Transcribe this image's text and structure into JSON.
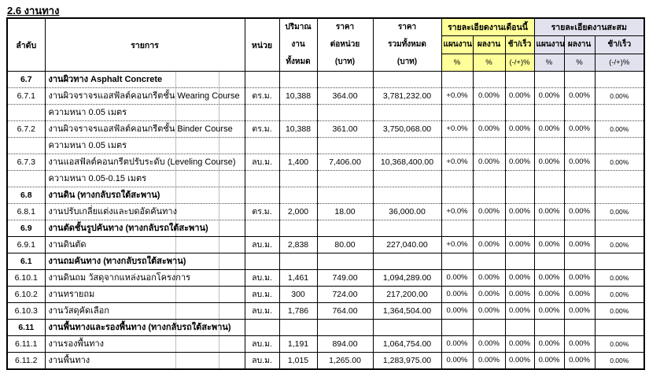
{
  "title": "2.6 งานทาง",
  "colors": {
    "month_header_bg": "#FFFF99",
    "cumulative_header_bg": "#E2E2EE",
    "grid": "#000000"
  },
  "table": {
    "headers": {
      "col_no": "ลำดับ",
      "col_desc": "รายการ",
      "col_unit": "หน่วย",
      "col_qty": [
        "ปริมาณ",
        "งาน",
        "ทั้งหมด"
      ],
      "col_unit_price": [
        "ราคา",
        "ต่อหน่วย",
        "(บาท)"
      ],
      "col_total": [
        "ราคา",
        "รวมทั้งหมด",
        "(บาท)"
      ],
      "group_month": "รายละเอียดงานเดือนนี้",
      "group_cumulative": "รายละเอียดงานสะสม",
      "sub_plan": "แผนงาน",
      "sub_actual": "ผลงาน",
      "sub_diff": "ช้า/เร็ว",
      "pct_label": "%",
      "diff_pct_label": "(-/+)%"
    },
    "rows": [
      {
        "no": "6.7",
        "desc": "งานผิวทาง Asphalt Concrete",
        "unit": "",
        "qty": "",
        "price": "",
        "total": "",
        "m_plan": "",
        "m_actual": "",
        "m_diff": "",
        "c_plan": "",
        "c_actual": "",
        "c_diff": "",
        "section": true,
        "border": "dotted"
      },
      {
        "no": "6.7.1",
        "desc": "งานผิวจราจรแอสฟัลต์คอนกรีตชั้น Wearing Course",
        "unit": "ตร.ม.",
        "qty": "10,388",
        "price": "364.00",
        "total": "3,781,232.00",
        "m_plan": "+0.0%",
        "m_actual": "0.00%",
        "m_diff": "0.00%",
        "c_plan": "0.00%",
        "c_actual": "0.00%",
        "c_diff": "0.00%",
        "section": false,
        "border": "dotted"
      },
      {
        "no": "",
        "desc": "ความหนา 0.05 เมตร",
        "unit": "",
        "qty": "",
        "price": "",
        "total": "",
        "m_plan": "",
        "m_actual": "",
        "m_diff": "",
        "c_plan": "",
        "c_actual": "",
        "c_diff": "",
        "section": false,
        "border": "dotted"
      },
      {
        "no": "6.7.2",
        "desc": "งานผิวจราจรแอสฟัลต์คอนกรีตชั้น  Binder Course",
        "unit": "ตร.ม.",
        "qty": "10,388",
        "price": "361.00",
        "total": "3,750,068.00",
        "m_plan": "+0.0%",
        "m_actual": "0.00%",
        "m_diff": "0.00%",
        "c_plan": "0.00%",
        "c_actual": "0.00%",
        "c_diff": "0.00%",
        "section": false,
        "border": "dotted"
      },
      {
        "no": "",
        "desc": "ความหนา 0.05 เมตร",
        "unit": "",
        "qty": "",
        "price": "",
        "total": "",
        "m_plan": "",
        "m_actual": "",
        "m_diff": "",
        "c_plan": "",
        "c_actual": "",
        "c_diff": "",
        "section": false,
        "border": "dotted"
      },
      {
        "no": "6.7.3",
        "desc": "งานแอสฟัลต์คอนกรีตปรับระดับ (Leveling Course)",
        "unit": "ลบ.ม.",
        "qty": "1,400",
        "price": "7,406.00",
        "total": "10,368,400.00",
        "m_plan": "+0.0%",
        "m_actual": "0.00%",
        "m_diff": "0.00%",
        "c_plan": "0.00%",
        "c_actual": "0.00%",
        "c_diff": "0.00%",
        "section": false,
        "border": "dotted"
      },
      {
        "no": "",
        "desc": "ความหนา 0.05-0.15 เมตร",
        "unit": "",
        "qty": "",
        "price": "",
        "total": "",
        "m_plan": "",
        "m_actual": "",
        "m_diff": "",
        "c_plan": "",
        "c_actual": "",
        "c_diff": "",
        "section": false,
        "border": "dotted"
      },
      {
        "no": "6.8",
        "desc": "งานดิน (ทางกลับรถใต้สะพาน)",
        "unit": "",
        "qty": "",
        "price": "",
        "total": "",
        "m_plan": "",
        "m_actual": "",
        "m_diff": "",
        "c_plan": "",
        "c_actual": "",
        "c_diff": "",
        "section": true,
        "border": "dotted"
      },
      {
        "no": "6.8.1",
        "desc": "งานปรับเกลี่ยแต่งและบดอัดคันทาง",
        "unit": "ตร.ม.",
        "qty": "2,000",
        "price": "18.00",
        "total": "36,000.00",
        "m_plan": "+0.0%",
        "m_actual": "0.00%",
        "m_diff": "0.00%",
        "c_plan": "0.00%",
        "c_actual": "0.00%",
        "c_diff": "0.00%",
        "section": false,
        "border": "dotted"
      },
      {
        "no": "6.9",
        "desc": "งานตัดชั้นรูปคันทาง (ทางกลับรถใต้สะพาน)",
        "unit": "",
        "qty": "",
        "price": "",
        "total": "",
        "m_plan": "",
        "m_actual": "",
        "m_diff": "",
        "c_plan": "",
        "c_actual": "",
        "c_diff": "",
        "section": true,
        "border": "solid"
      },
      {
        "no": "6.9.1",
        "desc": "งานดินตัด",
        "unit": "ลบ.ม.",
        "qty": "2,838",
        "price": "80.00",
        "total": "227,040.00",
        "m_plan": "+0.0%",
        "m_actual": "0.00%",
        "m_diff": "0.00%",
        "c_plan": "0.00%",
        "c_actual": "0.00%",
        "c_diff": "0.00%",
        "section": false,
        "border": "solid"
      },
      {
        "no": "6.1",
        "desc": "งานถมคันทาง (ทางกลับรถใต้สะพาน)",
        "unit": "",
        "qty": "",
        "price": "",
        "total": "",
        "m_plan": "",
        "m_actual": "",
        "m_diff": "",
        "c_plan": "",
        "c_actual": "",
        "c_diff": "",
        "section": true,
        "border": "solid"
      },
      {
        "no": "6.10.1",
        "desc": "งานดินถม วัสดุจากแหล่งนอกโครงการ",
        "unit": "ลบ.ม.",
        "qty": "1,461",
        "price": "749.00",
        "total": "1,094,289.00",
        "m_plan": "0.00%",
        "m_actual": "0.00%",
        "m_diff": "0.00%",
        "c_plan": "0.00%",
        "c_actual": "0.00%",
        "c_diff": "0.00%",
        "section": false,
        "border": "solid"
      },
      {
        "no": "6.10.2",
        "desc": "งานทรายถม",
        "unit": "ลบ.ม.",
        "qty": "300",
        "price": "724.00",
        "total": "217,200.00",
        "m_plan": "0.00%",
        "m_actual": "0.00%",
        "m_diff": "0.00%",
        "c_plan": "0.00%",
        "c_actual": "0.00%",
        "c_diff": "0.00%",
        "section": false,
        "border": "solid"
      },
      {
        "no": "6.10.3",
        "desc": "งานวัสดุคัดเลือก",
        "unit": "ลบ.ม.",
        "qty": "1,786",
        "price": "764.00",
        "total": "1,364,504.00",
        "m_plan": "0.00%",
        "m_actual": "0.00%",
        "m_diff": "0.00%",
        "c_plan": "0.00%",
        "c_actual": "0.00%",
        "c_diff": "0.00%",
        "section": false,
        "border": "solid"
      },
      {
        "no": "6.11",
        "desc": "งานพื้นทางและรองพื้นทาง (ทางกลับรถใต้สะพาน)",
        "unit": "",
        "qty": "",
        "price": "",
        "total": "",
        "m_plan": "",
        "m_actual": "",
        "m_diff": "",
        "c_plan": "",
        "c_actual": "",
        "c_diff": "",
        "section": true,
        "border": "solid"
      },
      {
        "no": "6.11.1",
        "desc": "งานรองพื้นทาง",
        "unit": "ลบ.ม.",
        "qty": "1,191",
        "price": "894.00",
        "total": "1,064,754.00",
        "m_plan": "0.00%",
        "m_actual": "0.00%",
        "m_diff": "0.00%",
        "c_plan": "0.00%",
        "c_actual": "0.00%",
        "c_diff": "0.00%",
        "section": false,
        "border": "solid"
      },
      {
        "no": "6.11.2",
        "desc": "งานพื้นทาง",
        "unit": "ลบ.ม.",
        "qty": "1,015",
        "price": "1,265.00",
        "total": "1,283,975.00",
        "m_plan": "0.00%",
        "m_actual": "0.00%",
        "m_diff": "0.00%",
        "c_plan": "0.00%",
        "c_actual": "0.00%",
        "c_diff": "0.00%",
        "section": false,
        "border": "solid"
      }
    ]
  }
}
